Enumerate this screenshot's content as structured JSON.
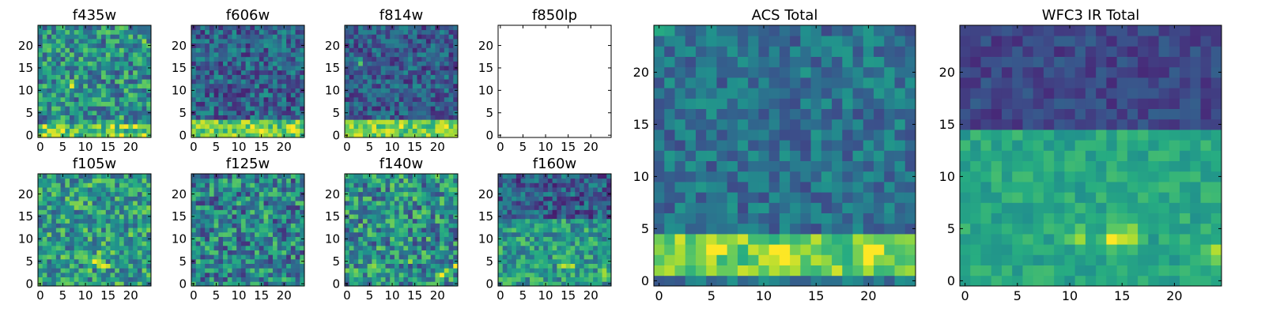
{
  "chart_data": [
    {
      "type": "heatmap",
      "title": "f435w",
      "xlabel": "",
      "ylabel": "",
      "grid_size": 25,
      "xlim": [
        0,
        24
      ],
      "ylim": [
        0,
        24
      ],
      "x_ticks": [
        0,
        5,
        10,
        15,
        20
      ],
      "y_ticks": [
        0,
        5,
        10,
        15,
        20
      ],
      "colormap": "viridis",
      "band_rows": [
        0,
        2
      ],
      "band_level": 0.75,
      "background_level": 0.5,
      "noise_level": 0.28,
      "hotspots": [
        [
          7,
          11
        ],
        [
          23,
          20
        ],
        [
          3,
          1
        ],
        [
          18,
          3
        ]
      ],
      "origin": "lower",
      "grid": false,
      "empty": false
    },
    {
      "type": "heatmap",
      "title": "f606w",
      "xlabel": "",
      "ylabel": "",
      "grid_size": 25,
      "xlim": [
        0,
        24
      ],
      "ylim": [
        0,
        24
      ],
      "x_ticks": [
        0,
        5,
        10,
        15,
        20
      ],
      "y_ticks": [
        0,
        5,
        10,
        15,
        20
      ],
      "colormap": "viridis",
      "band_rows": [
        0,
        3
      ],
      "band_level": 0.75,
      "background_level": 0.32,
      "noise_level": 0.22,
      "hotspots": [
        [
          13,
          1
        ],
        [
          15,
          1
        ],
        [
          22,
          2
        ]
      ],
      "origin": "lower",
      "grid": false,
      "empty": false
    },
    {
      "type": "heatmap",
      "title": "f814w",
      "xlabel": "",
      "ylabel": "",
      "grid_size": 25,
      "xlim": [
        0,
        24
      ],
      "ylim": [
        0,
        24
      ],
      "x_ticks": [
        0,
        5,
        10,
        15,
        20
      ],
      "y_ticks": [
        0,
        5,
        10,
        15,
        20
      ],
      "colormap": "viridis",
      "band_rows": [
        0,
        3
      ],
      "band_level": 0.78,
      "background_level": 0.3,
      "noise_level": 0.2,
      "hotspots": [
        [
          3,
          16
        ],
        [
          12,
          2
        ],
        [
          20,
          1
        ],
        [
          22,
          2
        ]
      ],
      "origin": "lower",
      "grid": false,
      "empty": false
    },
    {
      "type": "heatmap",
      "title": "f850lp",
      "xlabel": "",
      "ylabel": "",
      "grid_size": 25,
      "xlim": [
        0,
        24
      ],
      "ylim": [
        0,
        24
      ],
      "x_ticks": [
        0,
        5,
        10,
        15,
        20
      ],
      "y_ticks": [
        0,
        5,
        10,
        15,
        20
      ],
      "colormap": "viridis",
      "band_rows": [],
      "band_level": 0,
      "background_level": 0,
      "noise_level": 0,
      "hotspots": [],
      "origin": "lower",
      "grid": false,
      "empty": true
    },
    {
      "type": "heatmap",
      "title": "f105w",
      "xlabel": "",
      "ylabel": "",
      "grid_size": 25,
      "xlim": [
        0,
        24
      ],
      "ylim": [
        0,
        24
      ],
      "x_ticks": [
        0,
        5,
        10,
        15,
        20
      ],
      "y_ticks": [
        0,
        5,
        10,
        15,
        20
      ],
      "colormap": "viridis",
      "band_rows": [],
      "band_level": 0.6,
      "background_level": 0.55,
      "noise_level": 0.28,
      "hotspots": [
        [
          12,
          5
        ],
        [
          13,
          6
        ],
        [
          11,
          4
        ],
        [
          14,
          4
        ]
      ],
      "origin": "lower",
      "grid": false,
      "empty": false
    },
    {
      "type": "heatmap",
      "title": "f125w",
      "xlabel": "",
      "ylabel": "",
      "grid_size": 25,
      "xlim": [
        0,
        24
      ],
      "ylim": [
        0,
        24
      ],
      "x_ticks": [
        0,
        5,
        10,
        15,
        20
      ],
      "y_ticks": [
        0,
        5,
        10,
        15,
        20
      ],
      "colormap": "viridis",
      "band_rows": [],
      "band_level": 0.6,
      "background_level": 0.45,
      "noise_level": 0.3,
      "hotspots": [
        [
          12,
          5
        ],
        [
          4,
          9
        ],
        [
          16,
          14
        ]
      ],
      "origin": "lower",
      "grid": false,
      "empty": false
    },
    {
      "type": "heatmap",
      "title": "f140w",
      "xlabel": "",
      "ylabel": "",
      "grid_size": 25,
      "xlim": [
        0,
        24
      ],
      "ylim": [
        0,
        24
      ],
      "x_ticks": [
        0,
        5,
        10,
        15,
        20
      ],
      "y_ticks": [
        0,
        5,
        10,
        15,
        20
      ],
      "colormap": "viridis",
      "band_rows": [],
      "band_level": 0.6,
      "background_level": 0.5,
      "noise_level": 0.3,
      "hotspots": [
        [
          22,
          3
        ],
        [
          21,
          2
        ],
        [
          24,
          4
        ],
        [
          5,
          4
        ],
        [
          14,
          6
        ]
      ],
      "origin": "lower",
      "grid": false,
      "empty": false
    },
    {
      "type": "heatmap",
      "title": "f160w",
      "xlabel": "",
      "ylabel": "",
      "grid_size": 25,
      "xlim": [
        0,
        24
      ],
      "ylim": [
        0,
        24
      ],
      "x_ticks": [
        0,
        5,
        10,
        15,
        20
      ],
      "y_ticks": [
        0,
        5,
        10,
        15,
        20
      ],
      "colormap": "viridis",
      "band_rows": [
        0,
        14
      ],
      "band_level": 0.55,
      "background_level": 0.3,
      "noise_level": 0.22,
      "hotspots": [
        [
          14,
          4
        ],
        [
          16,
          4
        ],
        [
          23,
          2
        ]
      ],
      "origin": "lower",
      "grid": false,
      "empty": false
    },
    {
      "type": "heatmap",
      "title": "ACS Total",
      "xlabel": "",
      "ylabel": "",
      "grid_size": 25,
      "xlim": [
        0,
        24
      ],
      "ylim": [
        0,
        24
      ],
      "x_ticks": [
        0,
        5,
        10,
        15,
        20
      ],
      "y_ticks": [
        0,
        5,
        10,
        15,
        20
      ],
      "colormap": "viridis",
      "band_rows": [
        1,
        4
      ],
      "band_level": 0.78,
      "background_level": 0.38,
      "noise_level": 0.16,
      "hotspots": [
        [
          5,
          3
        ],
        [
          12,
          3
        ],
        [
          20,
          3
        ],
        [
          1,
          24
        ]
      ],
      "origin": "lower",
      "grid": false,
      "empty": false
    },
    {
      "type": "heatmap",
      "title": "WFC3 IR Total",
      "xlabel": "",
      "ylabel": "",
      "grid_size": 25,
      "xlim": [
        0,
        24
      ],
      "ylim": [
        0,
        24
      ],
      "x_ticks": [
        0,
        5,
        10,
        15,
        20
      ],
      "y_ticks": [
        0,
        5,
        10,
        15,
        20
      ],
      "colormap": "viridis",
      "band_rows": [
        0,
        14
      ],
      "band_level": 0.6,
      "background_level": 0.22,
      "noise_level": 0.1,
      "hotspots": [
        [
          11,
          4
        ],
        [
          14,
          4
        ],
        [
          15,
          4
        ],
        [
          24,
          3
        ],
        [
          16,
          5
        ]
      ],
      "origin": "lower",
      "grid": false,
      "empty": false
    }
  ]
}
